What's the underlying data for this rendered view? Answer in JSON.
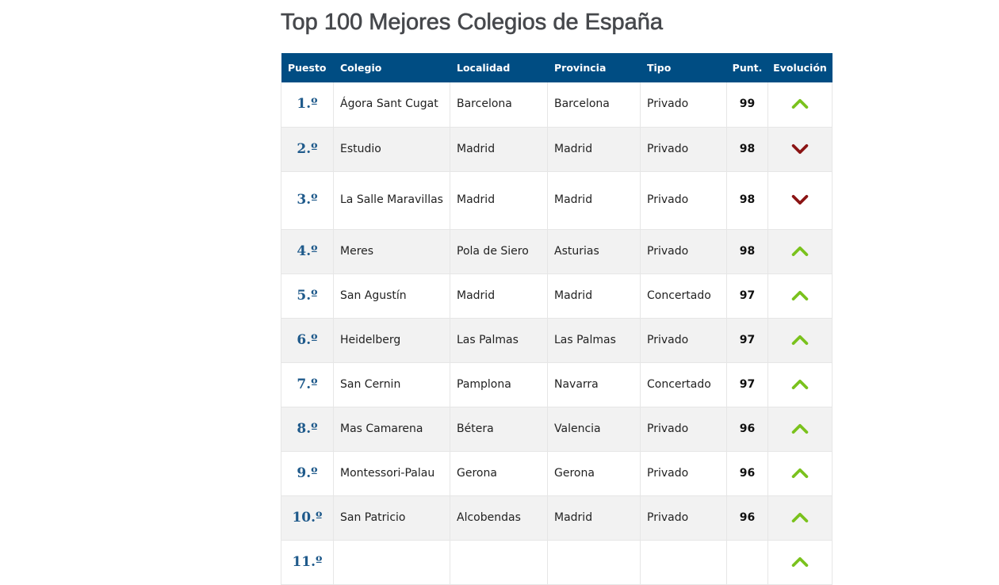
{
  "title": "Top 100 Mejores Colegios de España",
  "colors": {
    "header_bg": "#004d83",
    "rank": "#1f5a8b",
    "up": "#7ac21d",
    "down": "#8b1414"
  },
  "table": {
    "headers": {
      "puesto": "Puesto",
      "colegio": "Colegio",
      "localidad": "Localidad",
      "provincia": "Provincia",
      "tipo": "Tipo",
      "puntuacion": "Punt.",
      "evolucion": "Evolución"
    },
    "rows": [
      {
        "puesto": "1.º",
        "colegio": "Ágora Sant Cugat",
        "localidad": "Barcelona",
        "provincia": "Barcelona",
        "tipo": "Privado",
        "puntuacion": "99",
        "evolucion": "up"
      },
      {
        "puesto": "2.º",
        "colegio": "Estudio",
        "localidad": "Madrid",
        "provincia": "Madrid",
        "tipo": "Privado",
        "puntuacion": "98",
        "evolucion": "down"
      },
      {
        "puesto": "3.º",
        "colegio": "La Salle Maravillas",
        "localidad": "Madrid",
        "provincia": "Madrid",
        "tipo": "Privado",
        "puntuacion": "98",
        "evolucion": "down"
      },
      {
        "puesto": "4.º",
        "colegio": "Meres",
        "localidad": "Pola de Siero",
        "provincia": "Asturias",
        "tipo": "Privado",
        "puntuacion": "98",
        "evolucion": "up"
      },
      {
        "puesto": "5.º",
        "colegio": "San Agustín",
        "localidad": "Madrid",
        "provincia": "Madrid",
        "tipo": "Concertado",
        "puntuacion": "97",
        "evolucion": "up"
      },
      {
        "puesto": "6.º",
        "colegio": "Heidelberg",
        "localidad": "Las Palmas",
        "provincia": "Las Palmas",
        "tipo": "Privado",
        "puntuacion": "97",
        "evolucion": "up"
      },
      {
        "puesto": "7.º",
        "colegio": "San Cernin",
        "localidad": "Pamplona",
        "provincia": "Navarra",
        "tipo": "Concertado",
        "puntuacion": "97",
        "evolucion": "up"
      },
      {
        "puesto": "8.º",
        "colegio": "Mas Camarena",
        "localidad": "Bétera",
        "provincia": "Valencia",
        "tipo": "Privado",
        "puntuacion": "96",
        "evolucion": "up"
      },
      {
        "puesto": "9.º",
        "colegio": "Montessori-Palau",
        "localidad": "Gerona",
        "provincia": "Gerona",
        "tipo": "Privado",
        "puntuacion": "96",
        "evolucion": "up"
      },
      {
        "puesto": "10.º",
        "colegio": "San Patricio",
        "localidad": "Alcobendas",
        "provincia": "Madrid",
        "tipo": "Privado",
        "puntuacion": "96",
        "evolucion": "up"
      },
      {
        "puesto": "11.º",
        "colegio": "",
        "localidad": "",
        "provincia": "",
        "tipo": "",
        "puntuacion": "",
        "evolucion": "up"
      }
    ]
  }
}
